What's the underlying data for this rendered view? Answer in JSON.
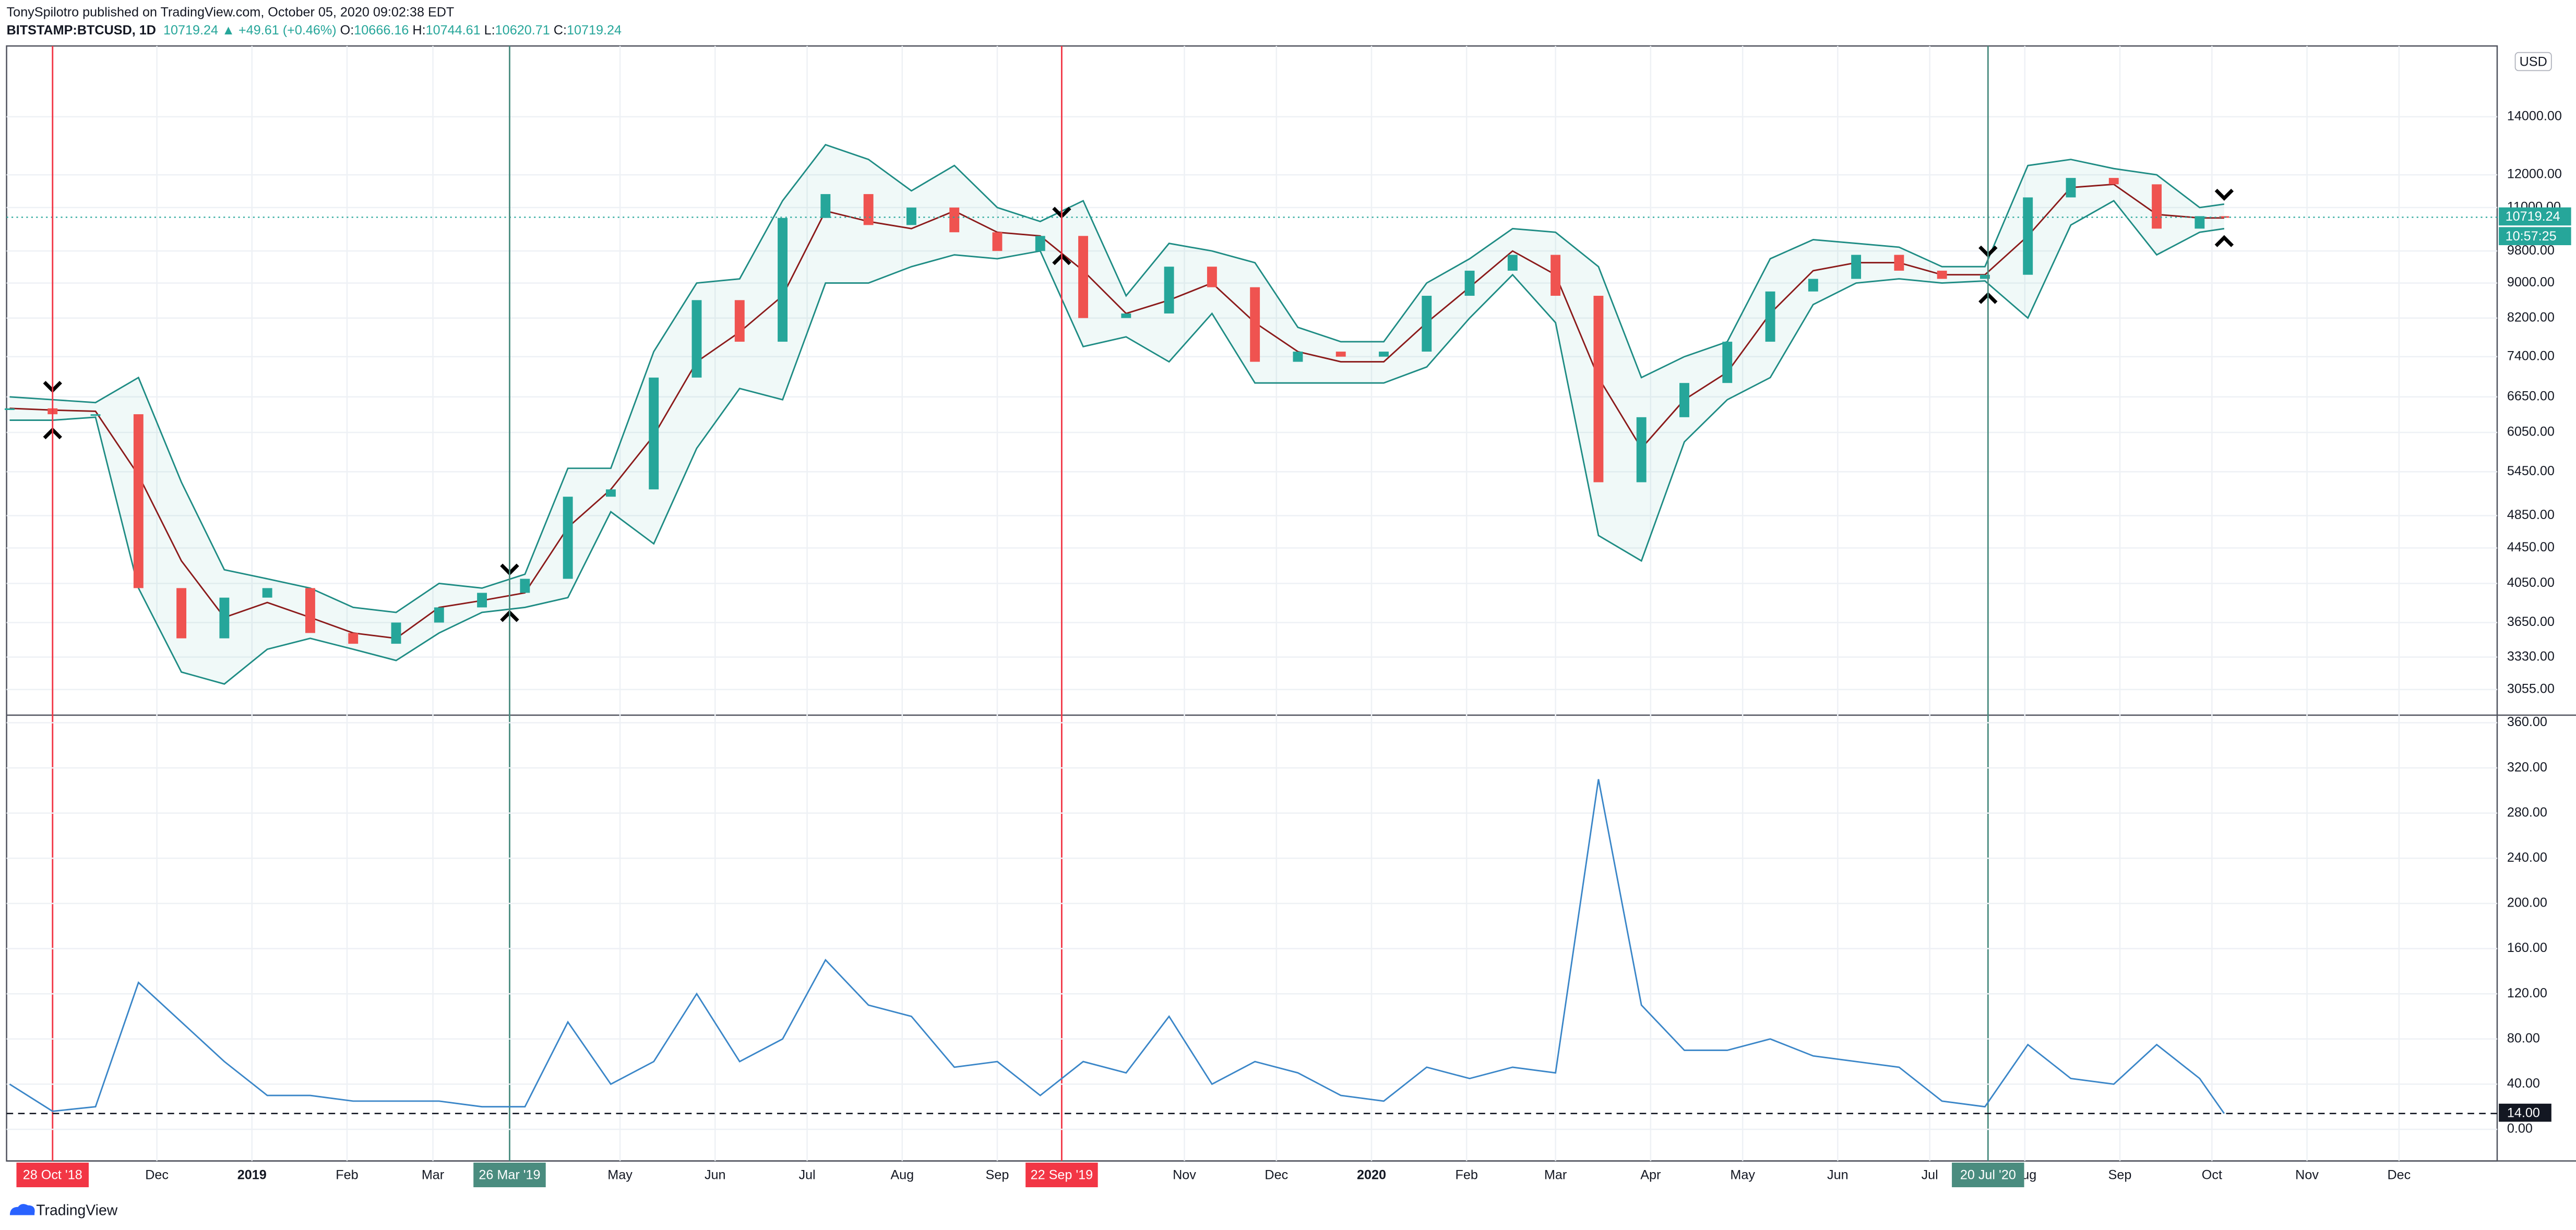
{
  "header": {
    "line1": "TonySpilotro published on TradingView.com, October 05, 2020 09:02:38 EDT",
    "symbol": "BITSTAMP:BTCUSD, 1D",
    "last": 10719.24,
    "change": "▲ +49.61 (+0.46%)",
    "ohlc": [
      {
        "label": "O:",
        "value": 10666.16
      },
      {
        "label": "H:",
        "value": 10744.61
      },
      {
        "label": "L:",
        "value": 10620.71
      },
      {
        "label": "C:",
        "value": 10719.24
      }
    ]
  },
  "footer": {
    "brand": "TradingView"
  },
  "chart_data": [
    {
      "type": "candlestick",
      "log_scale": true,
      "grid": true,
      "currency": "USD",
      "xlim": [
        "2018-10-13",
        "2021-01-02"
      ],
      "ylim": [
        2860,
        16900
      ],
      "yticks": [
        {
          "value": 3055,
          "label": "3055.00"
        },
        {
          "value": 3330,
          "label": "3330.00"
        },
        {
          "value": 3650,
          "label": "3650.00"
        },
        {
          "value": 4050,
          "label": "4050.00"
        },
        {
          "value": 4450,
          "label": "4450.00"
        },
        {
          "value": 4850,
          "label": "4850.00"
        },
        {
          "value": 5450,
          "label": "5450.00"
        },
        {
          "value": 6050,
          "label": "6050.00"
        },
        {
          "value": 6650,
          "label": "6650.00"
        },
        {
          "value": 7400,
          "label": "7400.00"
        },
        {
          "value": 8200,
          "label": "8200.00"
        },
        {
          "value": 9000,
          "label": "9000.00"
        },
        {
          "value": 9800,
          "label": "9800.00"
        },
        {
          "value": 11000,
          "label": "11000.00"
        },
        {
          "value": 12000,
          "label": "12000.00"
        },
        {
          "value": 14000,
          "label": "14000.00"
        }
      ],
      "x": [
        "2018-10-14",
        "2018-10-28",
        "2018-11-11",
        "2018-11-25",
        "2018-12-09",
        "2018-12-23",
        "2019-01-06",
        "2019-01-20",
        "2019-02-03",
        "2019-02-17",
        "2019-03-03",
        "2019-03-17",
        "2019-03-31",
        "2019-04-14",
        "2019-04-28",
        "2019-05-12",
        "2019-05-26",
        "2019-06-09",
        "2019-06-23",
        "2019-07-07",
        "2019-07-21",
        "2019-08-04",
        "2019-08-18",
        "2019-09-01",
        "2019-09-15",
        "2019-09-29",
        "2019-10-13",
        "2019-10-27",
        "2019-11-10",
        "2019-11-24",
        "2019-12-08",
        "2019-12-22",
        "2020-01-05",
        "2020-01-19",
        "2020-02-02",
        "2020-02-16",
        "2020-03-01",
        "2020-03-15",
        "2020-03-29",
        "2020-04-12",
        "2020-04-26",
        "2020-05-10",
        "2020-05-24",
        "2020-06-07",
        "2020-06-21",
        "2020-07-05",
        "2020-07-19",
        "2020-08-02",
        "2020-08-16",
        "2020-08-30",
        "2020-09-13",
        "2020-09-27",
        "2020-10-05"
      ],
      "series": [
        {
          "name": "close",
          "up_color": "#26a69a",
          "down_color": "#ef5350",
          "values": [
            6450,
            6350,
            6350,
            4000,
            3500,
            3900,
            4000,
            3550,
            3450,
            3650,
            3800,
            3950,
            4100,
            5100,
            5200,
            7000,
            8600,
            7700,
            10700,
            11400,
            10500,
            11000,
            10300,
            9800,
            10200,
            8200,
            8300,
            9400,
            8900,
            7300,
            7500,
            7400,
            7500,
            8700,
            9300,
            9700,
            8700,
            5300,
            6300,
            6900,
            7700,
            8800,
            9100,
            9700,
            9300,
            9100,
            9200,
            11300,
            11900,
            11700,
            10400,
            10750,
            10719.24
          ]
        },
        {
          "name": "basis",
          "color": "#8b1a1a",
          "values": [
            6450,
            6420,
            6400,
            5400,
            4300,
            3700,
            3850,
            3700,
            3550,
            3500,
            3800,
            3870,
            3950,
            4700,
            5200,
            6000,
            7300,
            7900,
            8700,
            10900,
            10600,
            10400,
            10900,
            10300,
            10200,
            9300,
            8300,
            8600,
            9000,
            8100,
            7500,
            7300,
            7300,
            8100,
            8900,
            9800,
            9200,
            7000,
            5800,
            6600,
            7100,
            8300,
            9300,
            9500,
            9500,
            9200,
            9200,
            10200,
            11600,
            11700,
            10800,
            10700,
            10700
          ]
        },
        {
          "name": "upper",
          "color": "#1e8c84",
          "values": [
            6650,
            6600,
            6550,
            7000,
            5300,
            4200,
            4100,
            4000,
            3800,
            3750,
            4050,
            4000,
            4150,
            5500,
            5500,
            7500,
            9000,
            9100,
            11200,
            13000,
            12500,
            11500,
            12300,
            11000,
            10600,
            11200,
            8700,
            10000,
            9800,
            9500,
            8000,
            7700,
            7700,
            9000,
            9600,
            10400,
            10300,
            9400,
            7000,
            7400,
            7700,
            9600,
            10100,
            10000,
            9900,
            9400,
            9400,
            12300,
            12500,
            12200,
            12000,
            11000,
            11100
          ]
        },
        {
          "name": "lower",
          "color": "#1e8c84",
          "values": [
            6250,
            6250,
            6300,
            4000,
            3200,
            3100,
            3400,
            3500,
            3400,
            3300,
            3550,
            3750,
            3800,
            3900,
            4900,
            4500,
            5800,
            6800,
            6600,
            9000,
            9000,
            9400,
            9700,
            9600,
            9800,
            7600,
            7800,
            7300,
            8300,
            6900,
            6900,
            6900,
            6900,
            7200,
            8200,
            9200,
            8100,
            4600,
            4300,
            5900,
            6600,
            7000,
            8500,
            9000,
            9100,
            9000,
            9050,
            8200,
            10500,
            11200,
            9700,
            10300,
            10400
          ]
        }
      ],
      "last_price": {
        "value": 10719.24,
        "countdown": "10:57:25",
        "color": "#26a69a"
      },
      "events": [
        {
          "x": "2018-10-28",
          "label": "28 Oct '18",
          "color": "#f23645"
        },
        {
          "x": "2019-03-26",
          "label": "26 Mar '19",
          "color": "#4a8c7f"
        },
        {
          "x": "2019-09-22",
          "label": "22 Sep '19",
          "color": "#f23645"
        },
        {
          "x": "2020-07-20",
          "label": "20 Jul '20",
          "color": "#4a8c7f"
        }
      ]
    },
    {
      "type": "line",
      "grid": true,
      "xlim": [
        "2018-10-13",
        "2021-01-02"
      ],
      "ylim": [
        -28,
        366
      ],
      "yticks": [
        {
          "value": 0,
          "label": "0.00"
        },
        {
          "value": 40,
          "label": "40.00"
        },
        {
          "value": 80,
          "label": "80.00"
        },
        {
          "value": 120,
          "label": "120.00"
        },
        {
          "value": 160,
          "label": "160.00"
        },
        {
          "value": 200,
          "label": "200.00"
        },
        {
          "value": 240,
          "label": "240.00"
        },
        {
          "value": 280,
          "label": "280.00"
        },
        {
          "value": 320,
          "label": "320.00"
        },
        {
          "value": 360,
          "label": "360.00"
        }
      ],
      "xticks": [
        {
          "value": "2018-12-01",
          "label": "Dec"
        },
        {
          "value": "2019-01-01",
          "label": "2019"
        },
        {
          "value": "2019-02-01",
          "label": "Feb"
        },
        {
          "value": "2019-03-01",
          "label": "Mar"
        },
        {
          "value": "2019-05-01",
          "label": "May"
        },
        {
          "value": "2019-06-01",
          "label": "Jun"
        },
        {
          "value": "2019-07-01",
          "label": "Jul"
        },
        {
          "value": "2019-08-01",
          "label": "Aug"
        },
        {
          "value": "2019-09-01",
          "label": "Sep"
        },
        {
          "value": "2019-11-01",
          "label": "Nov"
        },
        {
          "value": "2019-12-01",
          "label": "Dec"
        },
        {
          "value": "2020-01-01",
          "label": "2020"
        },
        {
          "value": "2020-02-01",
          "label": "Feb"
        },
        {
          "value": "2020-03-01",
          "label": "Mar"
        },
        {
          "value": "2020-04-01",
          "label": "Apr"
        },
        {
          "value": "2020-05-01",
          "label": "May"
        },
        {
          "value": "2020-06-01",
          "label": "Jun"
        },
        {
          "value": "2020-07-01",
          "label": "Jul"
        },
        {
          "value": "2020-08-01",
          "label": "Aug"
        },
        {
          "value": "2020-09-01",
          "label": "Sep"
        },
        {
          "value": "2020-10-01",
          "label": "Oct"
        },
        {
          "value": "2020-11-01",
          "label": "Nov"
        },
        {
          "value": "2020-12-01",
          "label": "Dec"
        }
      ],
      "x": [
        "2018-10-14",
        "2018-10-28",
        "2018-11-11",
        "2018-11-25",
        "2018-12-09",
        "2018-12-23",
        "2019-01-06",
        "2019-01-20",
        "2019-02-03",
        "2019-02-17",
        "2019-03-03",
        "2019-03-17",
        "2019-03-31",
        "2019-04-14",
        "2019-04-28",
        "2019-05-12",
        "2019-05-26",
        "2019-06-09",
        "2019-06-23",
        "2019-07-07",
        "2019-07-21",
        "2019-08-04",
        "2019-08-18",
        "2019-09-01",
        "2019-09-15",
        "2019-09-29",
        "2019-10-13",
        "2019-10-27",
        "2019-11-10",
        "2019-11-24",
        "2019-12-08",
        "2019-12-22",
        "2020-01-05",
        "2020-01-19",
        "2020-02-02",
        "2020-02-16",
        "2020-03-01",
        "2020-03-15",
        "2020-03-29",
        "2020-04-12",
        "2020-04-26",
        "2020-05-10",
        "2020-05-24",
        "2020-06-07",
        "2020-06-21",
        "2020-07-05",
        "2020-07-19",
        "2020-08-02",
        "2020-08-16",
        "2020-08-30",
        "2020-09-13",
        "2020-09-27",
        "2020-10-05"
      ],
      "series": [
        {
          "name": "bandwidth",
          "color": "#3a86c8",
          "values": [
            40,
            16,
            20,
            130,
            95,
            60,
            30,
            30,
            25,
            25,
            25,
            20,
            20,
            95,
            40,
            60,
            120,
            60,
            80,
            150,
            110,
            100,
            55,
            60,
            30,
            60,
            50,
            100,
            40,
            60,
            50,
            30,
            25,
            55,
            45,
            55,
            50,
            310,
            110,
            70,
            70,
            80,
            65,
            60,
            55,
            25,
            20,
            75,
            45,
            40,
            75,
            45,
            14
          ]
        }
      ],
      "hline": {
        "value": 14,
        "label": "14.00"
      }
    }
  ]
}
